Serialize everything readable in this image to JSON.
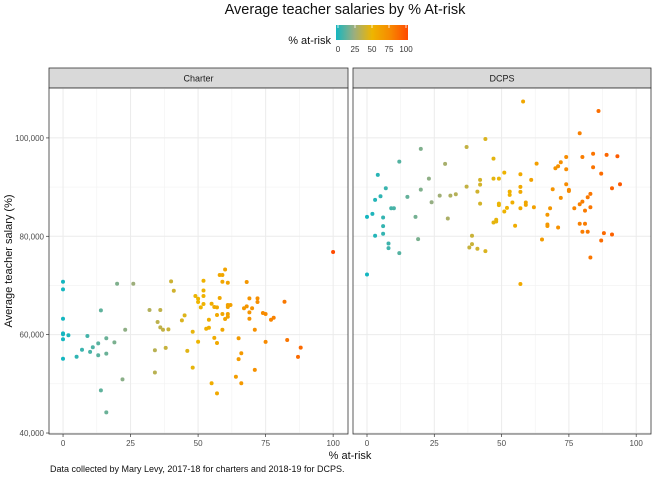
{
  "chart_data": {
    "type": "scatter",
    "title": "Average teacher salaries by % At-risk",
    "xlabel": "% at-risk",
    "ylabel": "Average teacher salary (%)",
    "caption": "Data collected by Mary Levy, 2017-18 for charters and 2018-19 for DCPS.",
    "legend": {
      "title": "% at-risk",
      "position": "top",
      "ticks": [
        "0",
        "25",
        "50",
        "75",
        "100"
      ],
      "colors": [
        "#14B6C0",
        "#9AAE80",
        "#EEB500",
        "#F78A00",
        "#FF4A00"
      ]
    },
    "xlim": [
      -5.2,
      105.5
    ],
    "ylim": [
      39800,
      110150
    ],
    "x_ticks": [
      0,
      25,
      50,
      75,
      100
    ],
    "x_tick_labels": [
      "0",
      "25",
      "50",
      "75",
      "100"
    ],
    "y_ticks": [
      40000,
      60000,
      80000,
      100000
    ],
    "y_tick_labels": [
      "40,000",
      "60,000",
      "80,000",
      "100,000"
    ],
    "grid": true,
    "facets": [
      {
        "name": "Charter",
        "points": [
          [
            100,
            76800
          ],
          [
            0,
            70760
          ],
          [
            0,
            69200
          ],
          [
            0,
            63250
          ],
          [
            0,
            60260
          ],
          [
            0,
            60100
          ],
          [
            2,
            59860
          ],
          [
            0,
            59050
          ],
          [
            0,
            55100
          ],
          [
            5,
            55500
          ],
          [
            7,
            56950
          ],
          [
            9,
            59730
          ],
          [
            10,
            56500
          ],
          [
            11,
            57420
          ],
          [
            13,
            58230
          ],
          [
            13,
            55800
          ],
          [
            14,
            64930
          ],
          [
            16,
            59250
          ],
          [
            16,
            56140
          ],
          [
            19,
            58430
          ],
          [
            20,
            70350
          ],
          [
            23,
            61000
          ],
          [
            26,
            70350
          ],
          [
            22,
            50900
          ],
          [
            14,
            48660
          ],
          [
            16,
            44200
          ],
          [
            32,
            65010
          ],
          [
            36,
            65010
          ],
          [
            35,
            62570
          ],
          [
            36,
            61480
          ],
          [
            37,
            61000
          ],
          [
            39,
            61070
          ],
          [
            40,
            70820
          ],
          [
            41,
            68930
          ],
          [
            34,
            56820
          ],
          [
            38,
            57300
          ],
          [
            34,
            52300
          ],
          [
            44,
            62900
          ],
          [
            45,
            63920
          ],
          [
            46,
            56700
          ],
          [
            48,
            60600
          ],
          [
            48,
            53300
          ],
          [
            49,
            67850
          ],
          [
            50,
            67310
          ],
          [
            50,
            66640
          ],
          [
            50,
            58570
          ],
          [
            51,
            65540
          ],
          [
            52,
            70960
          ],
          [
            52,
            68980
          ],
          [
            52,
            67850
          ],
          [
            52,
            66230
          ],
          [
            53,
            61220
          ],
          [
            54,
            61420
          ],
          [
            54,
            63040
          ],
          [
            55,
            66290
          ],
          [
            56,
            65620
          ],
          [
            56,
            59330
          ],
          [
            55,
            50110
          ],
          [
            57,
            65550
          ],
          [
            57,
            63990
          ],
          [
            57,
            58300
          ],
          [
            57,
            48060
          ],
          [
            58,
            72120
          ],
          [
            59,
            72120
          ],
          [
            60,
            73250
          ],
          [
            59,
            70760
          ],
          [
            61,
            70550
          ],
          [
            58,
            67450
          ],
          [
            59,
            64200
          ],
          [
            59,
            61000
          ],
          [
            60,
            63190
          ],
          [
            61,
            66030
          ],
          [
            61,
            65620
          ],
          [
            62,
            66030
          ],
          [
            61,
            64200
          ],
          [
            61,
            63650
          ],
          [
            65,
            59250
          ],
          [
            65,
            55020
          ],
          [
            64,
            51460
          ],
          [
            66,
            56210
          ],
          [
            66,
            50110
          ],
          [
            67,
            65350
          ],
          [
            68,
            70700
          ],
          [
            68,
            65750
          ],
          [
            69,
            67370
          ],
          [
            69,
            64530
          ],
          [
            70,
            65350
          ],
          [
            69,
            63250
          ],
          [
            71,
            61000
          ],
          [
            71,
            52830
          ],
          [
            72,
            67370
          ],
          [
            72,
            66640
          ],
          [
            74,
            64400
          ],
          [
            75,
            64200
          ],
          [
            75,
            58520
          ],
          [
            77,
            63040
          ],
          [
            78,
            63450
          ],
          [
            82,
            66700
          ],
          [
            83,
            58920
          ],
          [
            88,
            57360
          ],
          [
            87,
            55470
          ]
        ]
      },
      {
        "name": "DCPS",
        "points": [
          [
            58,
            107400
          ],
          [
            86,
            105470
          ],
          [
            79,
            100940
          ],
          [
            44,
            99790
          ],
          [
            37,
            98160
          ],
          [
            20,
            97760
          ],
          [
            84,
            96770
          ],
          [
            89,
            96540
          ],
          [
            93,
            96280
          ],
          [
            80,
            96130
          ],
          [
            74,
            96130
          ],
          [
            72,
            95060
          ],
          [
            63,
            94780
          ],
          [
            12,
            95180
          ],
          [
            29,
            94710
          ],
          [
            47,
            95790
          ],
          [
            71,
            94250
          ],
          [
            70,
            93840
          ],
          [
            84,
            94040
          ],
          [
            74,
            93640
          ],
          [
            51,
            92950
          ],
          [
            57,
            92620
          ],
          [
            87,
            92740
          ],
          [
            4,
            92480
          ],
          [
            47,
            91730
          ],
          [
            49,
            91730
          ],
          [
            23,
            91730
          ],
          [
            20,
            89500
          ],
          [
            42,
            91470
          ],
          [
            42,
            90510
          ],
          [
            61,
            91470
          ],
          [
            57,
            90040
          ],
          [
            37,
            90100
          ],
          [
            94,
            90590
          ],
          [
            91,
            89780
          ],
          [
            74,
            90590
          ],
          [
            75,
            89430
          ],
          [
            75,
            89200
          ],
          [
            69,
            89580
          ],
          [
            7,
            89780
          ],
          [
            41,
            89090
          ],
          [
            57,
            89030
          ],
          [
            53,
            89090
          ],
          [
            53,
            88420
          ],
          [
            83,
            88620
          ],
          [
            5,
            88150
          ],
          [
            15,
            88010
          ],
          [
            27,
            88280
          ],
          [
            31,
            88280
          ],
          [
            33,
            88560
          ],
          [
            3,
            87400
          ],
          [
            82,
            87950
          ],
          [
            72,
            87810
          ],
          [
            80,
            87060
          ],
          [
            24,
            86940
          ],
          [
            42,
            86650
          ],
          [
            49,
            86650
          ],
          [
            49,
            86350
          ],
          [
            54,
            86860
          ],
          [
            59,
            86860
          ],
          [
            59,
            86390
          ],
          [
            79,
            86530
          ],
          [
            9,
            85720
          ],
          [
            10,
            85720
          ],
          [
            52,
            85780
          ],
          [
            57,
            85720
          ],
          [
            62,
            85920
          ],
          [
            68,
            85720
          ],
          [
            77,
            85720
          ],
          [
            83,
            85920
          ],
          [
            81,
            85230
          ],
          [
            51,
            85030
          ],
          [
            67,
            84360
          ],
          [
            0,
            83950
          ],
          [
            2,
            84560
          ],
          [
            6,
            83810
          ],
          [
            18,
            83950
          ],
          [
            30,
            83610
          ],
          [
            67,
            82390
          ],
          [
            67,
            82100
          ],
          [
            47,
            82800
          ],
          [
            48,
            83350
          ],
          [
            48,
            83000
          ],
          [
            55,
            82130
          ],
          [
            71,
            81790
          ],
          [
            79,
            82530
          ],
          [
            81,
            82530
          ],
          [
            80,
            80910
          ],
          [
            82,
            80910
          ],
          [
            88,
            80650
          ],
          [
            91,
            80360
          ],
          [
            6,
            82070
          ],
          [
            6,
            80500
          ],
          [
            3,
            80100
          ],
          [
            39,
            80100
          ],
          [
            87,
            79140
          ],
          [
            65,
            79350
          ],
          [
            19,
            79430
          ],
          [
            8,
            78530
          ],
          [
            8,
            77600
          ],
          [
            12,
            76590
          ],
          [
            39,
            78410
          ],
          [
            38,
            77720
          ],
          [
            41,
            77460
          ],
          [
            44,
            76990
          ],
          [
            83,
            75690
          ],
          [
            0,
            72240
          ],
          [
            57,
            70290
          ]
        ]
      }
    ]
  }
}
